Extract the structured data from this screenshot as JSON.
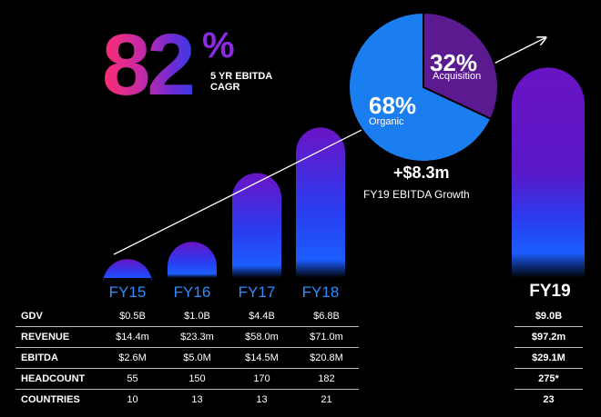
{
  "headline": {
    "value": "82",
    "unit": "%",
    "caption": "5 YR EBITDA CAGR"
  },
  "pie": {
    "slices": [
      {
        "label": "Acquisition",
        "pct_label": "32%",
        "value": 32,
        "color": "#5b1a8f"
      },
      {
        "label": "Organic",
        "pct_label": "68%",
        "value": 68,
        "color": "#1a7df0"
      }
    ]
  },
  "growth": {
    "value": "+$8.3m",
    "label": "FY19 EBITDA Growth"
  },
  "chart_data": {
    "type": "bar",
    "categories": [
      "FY15",
      "FY16",
      "FY17",
      "FY18",
      "FY19"
    ],
    "values": [
      2.6,
      5.0,
      14.5,
      20.8,
      29.1
    ],
    "ylabel": "",
    "ylim": [
      0,
      30
    ]
  },
  "table": {
    "rows": [
      {
        "label": "GDV",
        "values": [
          "$0.5B",
          "$1.0B",
          "$4.4B",
          "$6.8B"
        ],
        "fy19": "$9.0B"
      },
      {
        "label": "REVENUE",
        "values": [
          "$14.4m",
          "$23.3m",
          "$58.0m",
          "$71.0m"
        ],
        "fy19": "$97.2m"
      },
      {
        "label": "EBITDA",
        "values": [
          "$2.6M",
          "$5.0M",
          "$14.5M",
          "$20.8M"
        ],
        "fy19": "$29.1M"
      },
      {
        "label": "HEADCOUNT",
        "values": [
          "55",
          "150",
          "170",
          "182"
        ],
        "fy19": "275*"
      },
      {
        "label": "COUNTRIES",
        "values": [
          "10",
          "13",
          "13",
          "21"
        ],
        "fy19": "23"
      }
    ]
  }
}
